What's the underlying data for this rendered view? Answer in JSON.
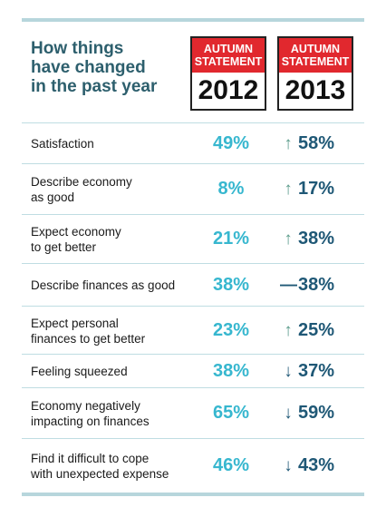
{
  "title": [
    "How things",
    "have changed",
    "in the past year"
  ],
  "columns": [
    {
      "label": [
        "AUTUMN",
        "STATEMENT"
      ],
      "year": "2012"
    },
    {
      "label": [
        "AUTUMN",
        "STATEMENT"
      ],
      "year": "2013"
    }
  ],
  "rows": [
    {
      "label": [
        "Satisfaction"
      ],
      "v2012": "49%",
      "v2013": "58%",
      "trend": "up"
    },
    {
      "label": [
        "Describe economy",
        "as good"
      ],
      "v2012": "8%",
      "v2013": "17%",
      "trend": "up"
    },
    {
      "label": [
        "Expect economy",
        "to get better"
      ],
      "v2012": "21%",
      "v2013": "38%",
      "trend": "up"
    },
    {
      "label": [
        "Describe finances as good"
      ],
      "v2012": "38%",
      "v2013": "38%",
      "trend": "flat"
    },
    {
      "label": [
        "Expect personal",
        "finances to get better"
      ],
      "v2012": "23%",
      "v2013": "25%",
      "trend": "up"
    },
    {
      "label": [
        "Feeling squeezed"
      ],
      "v2012": "38%",
      "v2013": "37%",
      "trend": "down"
    },
    {
      "label": [
        "Economy negatively",
        "impacting on finances"
      ],
      "v2012": "65%",
      "v2013": "59%",
      "trend": "down"
    },
    {
      "label": [
        "Find it difficult to cope",
        "with unexpected expense"
      ],
      "v2012": "46%",
      "v2013": "43%",
      "trend": "down"
    }
  ],
  "colors": {
    "title": "#2d5f6d",
    "badge_red": "#e1282e",
    "value_2012": "#37b7cf",
    "value_2013": "#1f5876",
    "divider": "#bfdde2"
  }
}
